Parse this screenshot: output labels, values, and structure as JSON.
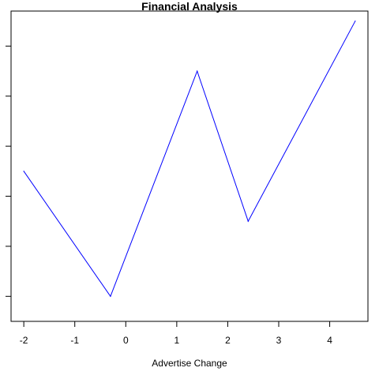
{
  "chart_data": {
    "type": "line",
    "title": "Financial Analysis",
    "xlabel": "Advertise Change",
    "ylabel": "",
    "x_ticks": [
      -2,
      -1,
      0,
      1,
      2,
      3,
      4
    ],
    "xlim": [
      -2.25,
      4.75
    ],
    "ylim": [
      -0.5,
      5.7
    ],
    "y_tick_count": 6,
    "y_tick_labels_shown": false,
    "grid": false,
    "series": [
      {
        "color": "#0000ff",
        "x": [
          -2.0,
          -0.3,
          1.4,
          2.4,
          4.5
        ],
        "y": [
          2.5,
          0.0,
          4.5,
          1.5,
          5.5
        ]
      }
    ]
  }
}
